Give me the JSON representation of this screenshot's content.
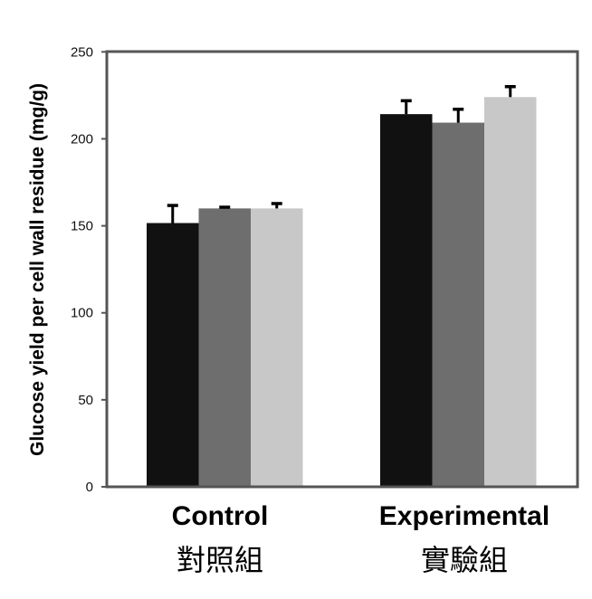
{
  "chart_data": {
    "type": "bar",
    "title": "",
    "xlabel": "",
    "ylabel": "Glucose yield per cell wall residue (mg/g)",
    "ylim": [
      0,
      250
    ],
    "yticks": [
      0,
      50,
      100,
      150,
      200,
      250
    ],
    "grid": false,
    "legend": "none",
    "categories": [
      {
        "label": "Control",
        "label_zh": "對照組"
      },
      {
        "label": "Experimental",
        "label_zh": "實驗組"
      }
    ],
    "series": [
      {
        "color": "#111111",
        "values": [
          151.6,
          214.2
        ],
        "error_upper": [
          161.7,
          221.9
        ]
      },
      {
        "color": "#6e6e6e",
        "values": [
          160,
          209.3
        ],
        "error_upper": [
          160.7,
          217
        ]
      },
      {
        "color": "#c8c8c8",
        "values": [
          160,
          224
        ],
        "error_upper": [
          162.8,
          230
        ]
      }
    ]
  }
}
